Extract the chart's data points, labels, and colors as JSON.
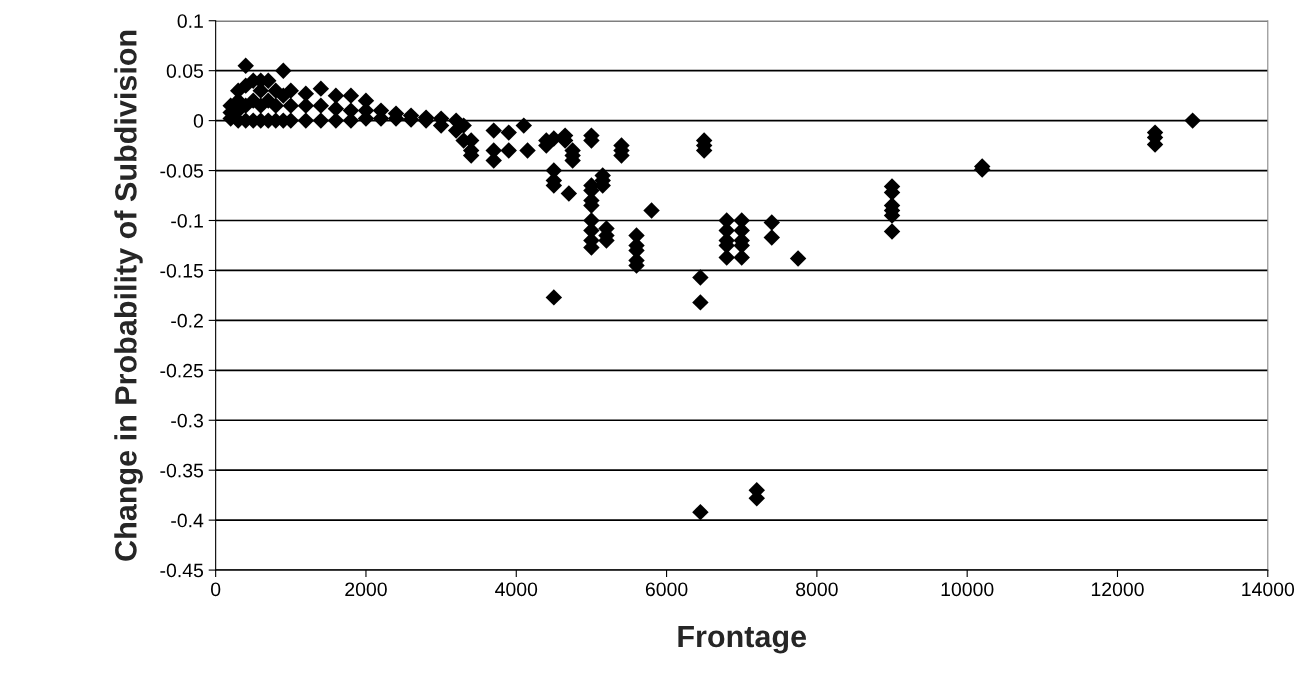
{
  "chart_data": {
    "type": "scatter",
    "xlabel": "Frontage",
    "ylabel": "Change in Probability of Subdivision",
    "marker": "diamond",
    "grid": "y",
    "xlim": [
      0,
      14000
    ],
    "ylim": [
      -0.45,
      0.1
    ],
    "xticks": [
      0,
      2000,
      4000,
      6000,
      8000,
      10000,
      12000,
      14000
    ],
    "yticks": [
      -0.45,
      -0.4,
      -0.35,
      -0.3,
      -0.25,
      -0.2,
      -0.15,
      -0.1,
      -0.05,
      0,
      0.05,
      0.1
    ],
    "series": [
      {
        "color": "#000000",
        "x": [
          200,
          200,
          200,
          300,
          300,
          300,
          300,
          400,
          400,
          400,
          400,
          500,
          500,
          500,
          600,
          600,
          600,
          600,
          700,
          700,
          700,
          800,
          800,
          800,
          900,
          900,
          900,
          1000,
          1000,
          1000,
          1200,
          1200,
          1200,
          1400,
          1400,
          1400,
          1600,
          1600,
          1600,
          1800,
          1800,
          1800,
          2000,
          2000,
          2000,
          2200,
          2200,
          2400,
          2400,
          2600,
          2600,
          2800,
          2800,
          3000,
          3000,
          3200,
          3200,
          3300,
          3300,
          3400,
          3400,
          3400,
          3700,
          3700,
          3700,
          3900,
          3900,
          4100,
          4150,
          4400,
          4400,
          4500,
          4500,
          4500,
          4500,
          4500,
          4650,
          4650,
          4700,
          4750,
          4750,
          4750,
          5000,
          5000,
          5000,
          5000,
          5000,
          5000,
          5000,
          5000,
          5000,
          5000,
          5150,
          5150,
          5150,
          5200,
          5200,
          5200,
          5400,
          5400,
          5400,
          5600,
          5600,
          5600,
          5600,
          5600,
          5800,
          6450,
          6450,
          6450,
          6500,
          6500,
          6500,
          6800,
          6800,
          6800,
          6800,
          6800,
          7000,
          7000,
          7000,
          7000,
          7000,
          7200,
          7200,
          7400,
          7400,
          7750,
          9000,
          9000,
          9000,
          9000,
          9000,
          9000,
          10200,
          10200,
          12500,
          12500,
          12500,
          13000
        ],
        "values": [
          0.002,
          0.008,
          0.015,
          0,
          0.01,
          0.02,
          0.03,
          0,
          0.015,
          0.035,
          0.055,
          0,
          0.02,
          0.04,
          0,
          0.015,
          0.03,
          0.04,
          0,
          0.02,
          0.04,
          0,
          0.015,
          0.03,
          0,
          0.025,
          0.05,
          0,
          0.015,
          0.03,
          0,
          0.015,
          0.027,
          0,
          0.015,
          0.032,
          0,
          0.012,
          0.025,
          0,
          0.01,
          0.025,
          0.002,
          0.01,
          0.02,
          0.002,
          0.01,
          0.002,
          0.007,
          0.001,
          0.005,
          0,
          0.003,
          -0.005,
          0.002,
          -0.01,
          0,
          -0.02,
          -0.005,
          -0.02,
          -0.03,
          -0.035,
          -0.01,
          -0.03,
          -0.04,
          -0.012,
          -0.03,
          -0.005,
          -0.03,
          -0.02,
          -0.025,
          -0.018,
          -0.05,
          -0.06,
          -0.065,
          -0.177,
          -0.015,
          -0.02,
          -0.073,
          -0.03,
          -0.035,
          -0.04,
          -0.015,
          -0.02,
          -0.065,
          -0.07,
          -0.08,
          -0.085,
          -0.1,
          -0.11,
          -0.12,
          -0.127,
          -0.055,
          -0.06,
          -0.065,
          -0.108,
          -0.115,
          -0.12,
          -0.025,
          -0.03,
          -0.035,
          -0.115,
          -0.125,
          -0.13,
          -0.14,
          -0.145,
          -0.09,
          -0.157,
          -0.182,
          -0.392,
          -0.02,
          -0.025,
          -0.03,
          -0.1,
          -0.11,
          -0.12,
          -0.125,
          -0.137,
          -0.1,
          -0.11,
          -0.12,
          -0.125,
          -0.137,
          -0.37,
          -0.378,
          -0.102,
          -0.117,
          -0.138,
          -0.066,
          -0.072,
          -0.085,
          -0.09,
          -0.095,
          -0.111,
          -0.046,
          -0.049,
          -0.012,
          -0.017,
          -0.024,
          0
        ]
      }
    ]
  }
}
